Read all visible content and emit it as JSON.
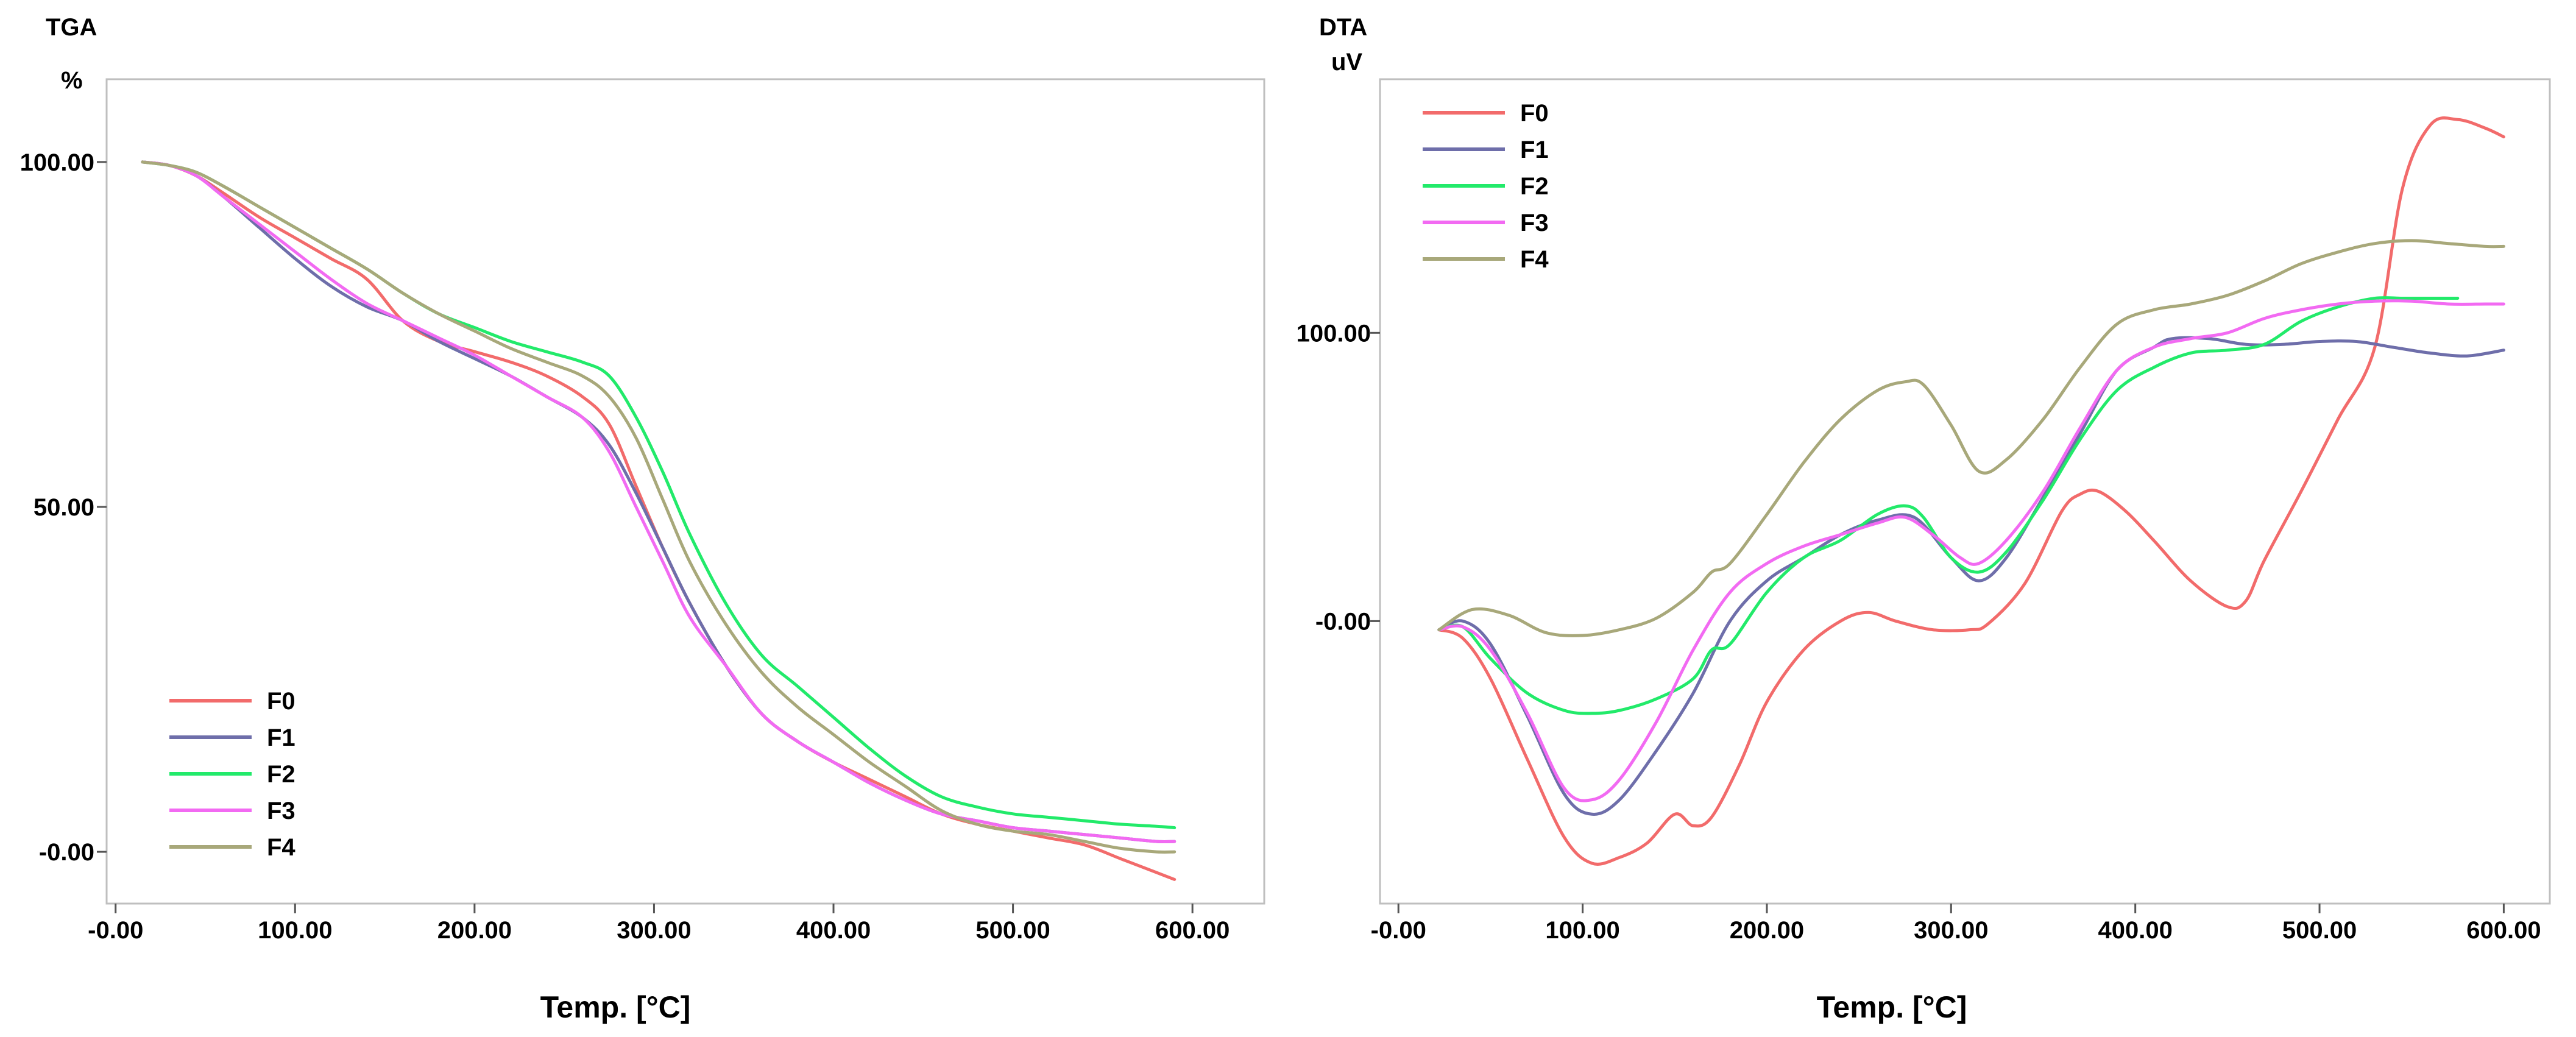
{
  "colors": {
    "F0": "#f26b6b",
    "F1": "#6e6eaa",
    "F2": "#22ea6a",
    "F3": "#f26af2",
    "F4": "#a8a87a"
  },
  "chart_data": [
    {
      "type": "line",
      "title": "TGA",
      "ylabel": "%",
      "xlabel": "Temp. [°C]",
      "xlim": [
        -5,
        640
      ],
      "ylim": [
        -7.5,
        112
      ],
      "xticks": [
        0,
        100,
        200,
        300,
        400,
        500,
        600
      ],
      "xtick_labels": [
        "-0.00",
        "100.00",
        "200.00",
        "300.00",
        "400.00",
        "500.00",
        "600.00"
      ],
      "yticks": [
        0,
        50,
        100
      ],
      "ytick_labels": [
        "-0.00",
        "50.00",
        "100.00"
      ],
      "legend_position": "bottom-left",
      "series": [
        {
          "name": "F0",
          "x": [
            15,
            30,
            45,
            60,
            80,
            100,
            120,
            140,
            160,
            180,
            200,
            220,
            240,
            260,
            275,
            290,
            305,
            320,
            340,
            360,
            380,
            400,
            420,
            440,
            460,
            480,
            500,
            520,
            540,
            560,
            580,
            590
          ],
          "y": [
            100,
            99.5,
            98,
            95.5,
            92,
            89,
            86,
            83,
            77,
            74,
            72.5,
            71,
            69,
            66,
            62,
            53,
            44,
            36,
            27,
            20,
            16,
            13,
            10.5,
            8,
            5.5,
            4,
            3,
            2,
            1,
            -1,
            -3,
            -4
          ]
        },
        {
          "name": "F1",
          "x": [
            15,
            30,
            45,
            60,
            80,
            100,
            120,
            140,
            160,
            180,
            200,
            220,
            240,
            260,
            275,
            290,
            305,
            320,
            340,
            360,
            380,
            400,
            420,
            440,
            460,
            480,
            500,
            520,
            540,
            560,
            580,
            590
          ],
          "y": [
            100,
            99.5,
            98,
            95,
            90.5,
            86,
            82,
            79,
            77,
            74,
            71.5,
            69,
            66,
            63,
            59,
            52,
            44,
            36,
            27,
            20,
            16,
            13,
            10,
            7.5,
            5.5,
            4.5,
            3.5,
            3,
            2.5,
            2,
            1.5,
            1.5
          ]
        },
        {
          "name": "F2",
          "x": [
            15,
            30,
            45,
            60,
            80,
            100,
            120,
            140,
            160,
            180,
            200,
            220,
            240,
            260,
            275,
            290,
            305,
            320,
            340,
            360,
            380,
            400,
            420,
            440,
            460,
            480,
            500,
            520,
            540,
            560,
            580,
            590
          ],
          "y": [
            100,
            99.5,
            98.5,
            96.5,
            93.5,
            90.5,
            87.5,
            84.5,
            81,
            78,
            76,
            74,
            72.5,
            71,
            69,
            63,
            55,
            46,
            36,
            28.5,
            24,
            19.5,
            15,
            11,
            8,
            6.5,
            5.5,
            5,
            4.5,
            4,
            3.7,
            3.5
          ]
        },
        {
          "name": "F3",
          "x": [
            15,
            30,
            45,
            60,
            80,
            100,
            120,
            140,
            160,
            180,
            200,
            220,
            240,
            260,
            275,
            290,
            305,
            320,
            340,
            360,
            380,
            400,
            420,
            440,
            460,
            480,
            500,
            520,
            540,
            560,
            580,
            590
          ],
          "y": [
            100,
            99.5,
            98,
            95,
            91,
            87,
            83,
            79.5,
            77,
            74.5,
            72,
            69,
            66,
            63,
            58,
            50,
            42,
            34,
            27,
            20,
            16,
            13,
            10,
            7.5,
            5.5,
            4.5,
            3.5,
            3,
            2.5,
            2,
            1.5,
            1.5
          ]
        },
        {
          "name": "F4",
          "x": [
            15,
            30,
            45,
            60,
            80,
            100,
            120,
            140,
            160,
            180,
            200,
            220,
            240,
            260,
            275,
            290,
            305,
            320,
            340,
            360,
            380,
            400,
            420,
            440,
            460,
            480,
            500,
            520,
            540,
            560,
            580,
            590
          ],
          "y": [
            100,
            99.5,
            98.5,
            96.5,
            93.5,
            90.5,
            87.5,
            84.5,
            81,
            78,
            75.5,
            73,
            71,
            69,
            66,
            60,
            51,
            42,
            33,
            26,
            21,
            17,
            13,
            9.5,
            6,
            4,
            3,
            2.5,
            1.5,
            0.5,
            0,
            0
          ]
        }
      ]
    },
    {
      "type": "line",
      "title": "DTA",
      "ylabel": "uV",
      "xlabel": "Temp. [°C]",
      "xlim": [
        -10,
        625
      ],
      "ylim": [
        -98,
        188
      ],
      "xticks": [
        0,
        100,
        200,
        300,
        400,
        500,
        600
      ],
      "xtick_labels": [
        "-0.00",
        "100.00",
        "200.00",
        "300.00",
        "400.00",
        "500.00",
        "600.00"
      ],
      "yticks": [
        0,
        100
      ],
      "ytick_labels": [
        "-0.00",
        "100.00"
      ],
      "legend_position": "top-left",
      "series": [
        {
          "name": "F0",
          "x": [
            22,
            35,
            50,
            70,
            90,
            105,
            120,
            135,
            150,
            160,
            170,
            185,
            200,
            220,
            240,
            255,
            270,
            290,
            310,
            320,
            340,
            360,
            370,
            380,
            395,
            410,
            430,
            450,
            460,
            470,
            490,
            510,
            530,
            545,
            560,
            575,
            590,
            600
          ],
          "y": [
            -3,
            -6,
            -20,
            -48,
            -75,
            -84,
            -82,
            -77,
            -67,
            -71,
            -68,
            -50,
            -28,
            -10,
            0,
            3,
            0,
            -3,
            -3,
            -1,
            13,
            38,
            44,
            45,
            38,
            28,
            14,
            5,
            7,
            21,
            45,
            70,
            95,
            150,
            172,
            174,
            171,
            168
          ]
        },
        {
          "name": "F1",
          "x": [
            22,
            35,
            50,
            70,
            90,
            105,
            120,
            140,
            160,
            180,
            200,
            220,
            240,
            260,
            280,
            300,
            315,
            330,
            350,
            370,
            390,
            410,
            420,
            440,
            460,
            480,
            500,
            520,
            540,
            560,
            580,
            600
          ],
          "y": [
            -3,
            0,
            -8,
            -33,
            -60,
            -67,
            -62,
            -45,
            -25,
            0,
            14,
            22,
            30,
            35,
            36,
            22,
            14,
            22,
            43,
            65,
            87,
            95,
            98,
            98,
            96,
            96,
            97,
            97,
            95,
            93,
            92,
            94
          ]
        },
        {
          "name": "F2",
          "x": [
            22,
            35,
            50,
            70,
            90,
            105,
            120,
            140,
            160,
            170,
            180,
            200,
            220,
            240,
            260,
            275,
            285,
            300,
            315,
            330,
            350,
            370,
            390,
            410,
            430,
            450,
            470,
            490,
            510,
            530,
            545,
            560,
            575
          ],
          "y": [
            -3,
            -2,
            -13,
            -25,
            -31,
            -32,
            -31,
            -27,
            -20,
            -10,
            -8,
            10,
            22,
            28,
            37,
            40,
            36,
            22,
            17,
            24,
            42,
            63,
            80,
            88,
            93,
            94,
            96,
            104,
            109,
            112,
            112,
            112,
            112
          ]
        },
        {
          "name": "F3",
          "x": [
            22,
            35,
            50,
            70,
            90,
            105,
            120,
            140,
            160,
            180,
            200,
            220,
            240,
            260,
            275,
            290,
            305,
            315,
            330,
            350,
            370,
            390,
            410,
            430,
            450,
            470,
            490,
            510,
            530,
            550,
            570,
            590,
            600
          ],
          "y": [
            -3,
            -2,
            -10,
            -32,
            -58,
            -62,
            -55,
            -35,
            -10,
            10,
            20,
            26,
            30,
            34,
            36,
            30,
            22,
            20,
            28,
            45,
            67,
            87,
            95,
            98,
            100,
            105,
            108,
            110,
            111,
            111,
            110,
            110,
            110
          ]
        },
        {
          "name": "F4",
          "x": [
            22,
            40,
            60,
            80,
            100,
            120,
            140,
            160,
            170,
            180,
            200,
            220,
            240,
            260,
            275,
            285,
            300,
            315,
            330,
            350,
            370,
            390,
            410,
            430,
            450,
            470,
            490,
            510,
            530,
            550,
            570,
            590,
            600
          ],
          "y": [
            -3,
            4,
            2,
            -4,
            -5,
            -3,
            1,
            10,
            17,
            20,
            37,
            55,
            70,
            80,
            83,
            82,
            68,
            52,
            56,
            70,
            88,
            103,
            108,
            110,
            113,
            118,
            124,
            128,
            131,
            132,
            131,
            130,
            130
          ]
        }
      ]
    }
  ]
}
